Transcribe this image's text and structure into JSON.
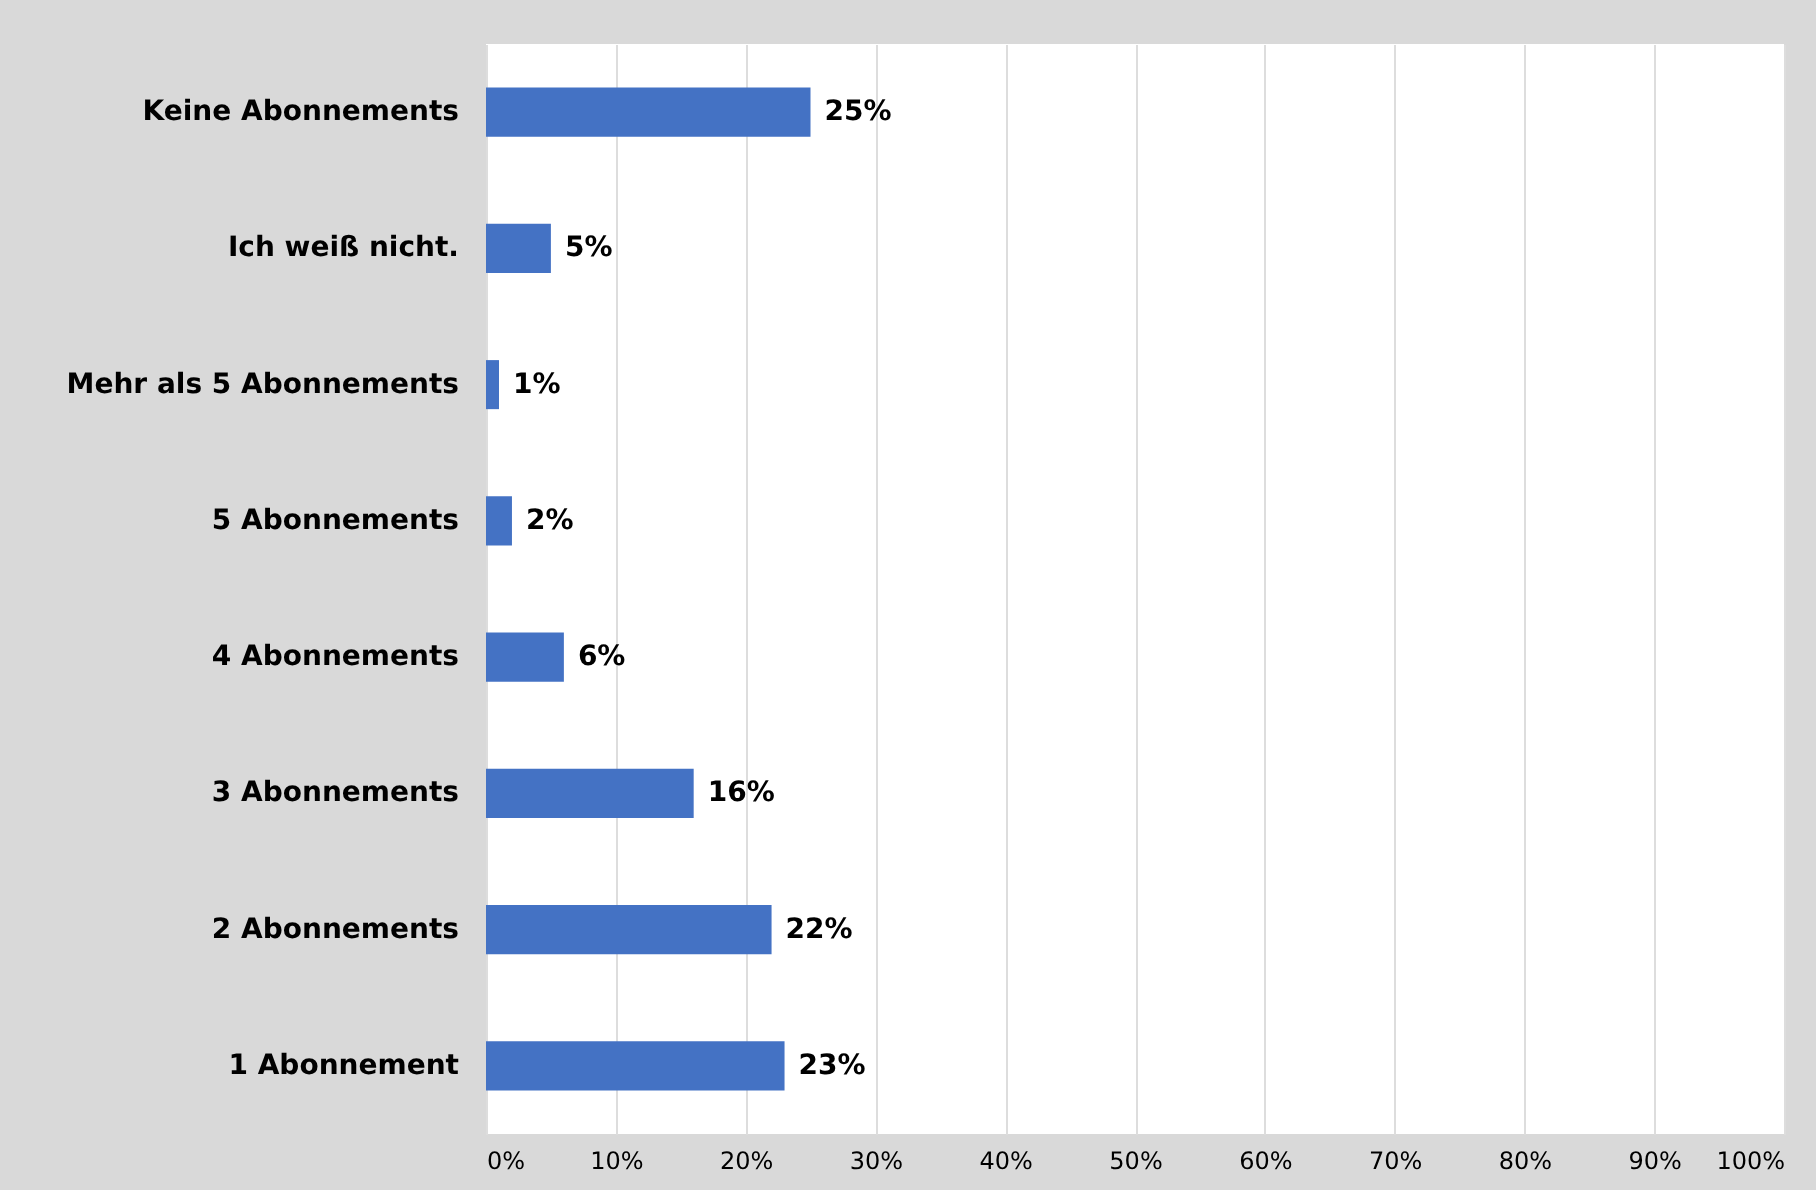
{
  "chart_data": {
    "type": "bar",
    "orientation": "horizontal",
    "categories": [
      "Keine Abonnements",
      "Ich weiß nicht.",
      "Mehr als 5 Abonnements",
      "5 Abonnements",
      "4 Abonnements",
      "3 Abonnements",
      "2 Abonnements",
      "1 Abonnement"
    ],
    "values": [
      25,
      5,
      1,
      2,
      6,
      16,
      22,
      23
    ],
    "value_labels": [
      "25%",
      "5%",
      "1%",
      "2%",
      "6%",
      "16%",
      "22%",
      "23%"
    ],
    "color": "#4472c4",
    "xlim": [
      0,
      100
    ],
    "xticks": [
      {
        "value": 0,
        "label": "0%"
      },
      {
        "value": 10,
        "label": "10%"
      },
      {
        "value": 20,
        "label": "20%"
      },
      {
        "value": 30,
        "label": "30%"
      },
      {
        "value": 40,
        "label": "40%"
      },
      {
        "value": 50,
        "label": "50%"
      },
      {
        "value": 60,
        "label": "60%"
      },
      {
        "value": 70,
        "label": "70%"
      },
      {
        "value": 80,
        "label": "80%"
      },
      {
        "value": 90,
        "label": "90%"
      },
      {
        "value": 100,
        "label": "100%"
      }
    ],
    "grid": "x"
  }
}
